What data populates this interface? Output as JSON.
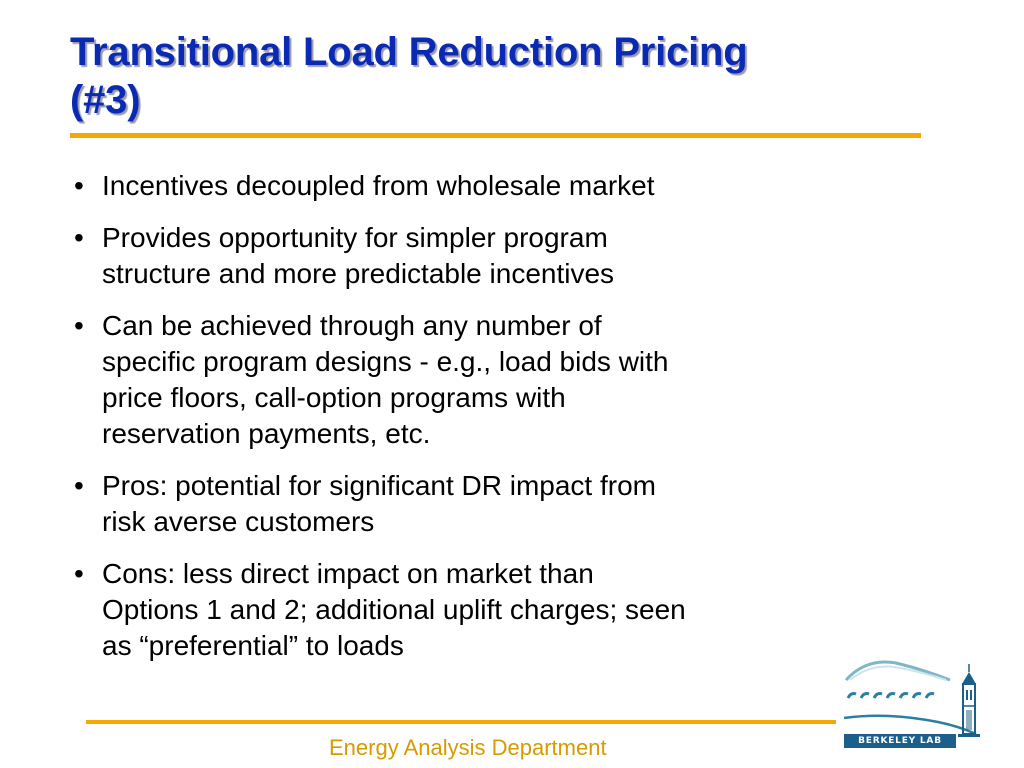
{
  "slide": {
    "title_lines": [
      "Transitional Load Reduction Pricing",
      "(#3)"
    ],
    "bullet_glyph": "•",
    "bullets": [
      {
        "lines": [
          "Incentives decoupled from wholesale market"
        ]
      },
      {
        "lines": [
          "Provides opportunity for simpler program",
          "structure and more predictable incentives"
        ]
      },
      {
        "lines": [
          "Can be achieved through any number of",
          "specific program designs - e.g., load bids with",
          "price floors, call-option programs with",
          "reservation payments, etc."
        ]
      },
      {
        "lines": [
          "Pros: potential for significant DR impact from",
          "risk averse customers"
        ]
      },
      {
        "lines": [
          "Cons: less direct impact on market than",
          "Options 1 and 2; additional uplift charges; seen",
          "as “preferential” to loads"
        ]
      }
    ],
    "footer": "Energy Analysis Department",
    "logo": {
      "name": "berkeley-lab-logo",
      "text": "BERKELEY LAB"
    }
  },
  "colors": {
    "title": "#0a2ab4",
    "accent_rule": "#f5a800",
    "footer_text": "#d79a00",
    "logo_blue": "#1b5f8a",
    "logo_teal": "#2b7fa0"
  }
}
